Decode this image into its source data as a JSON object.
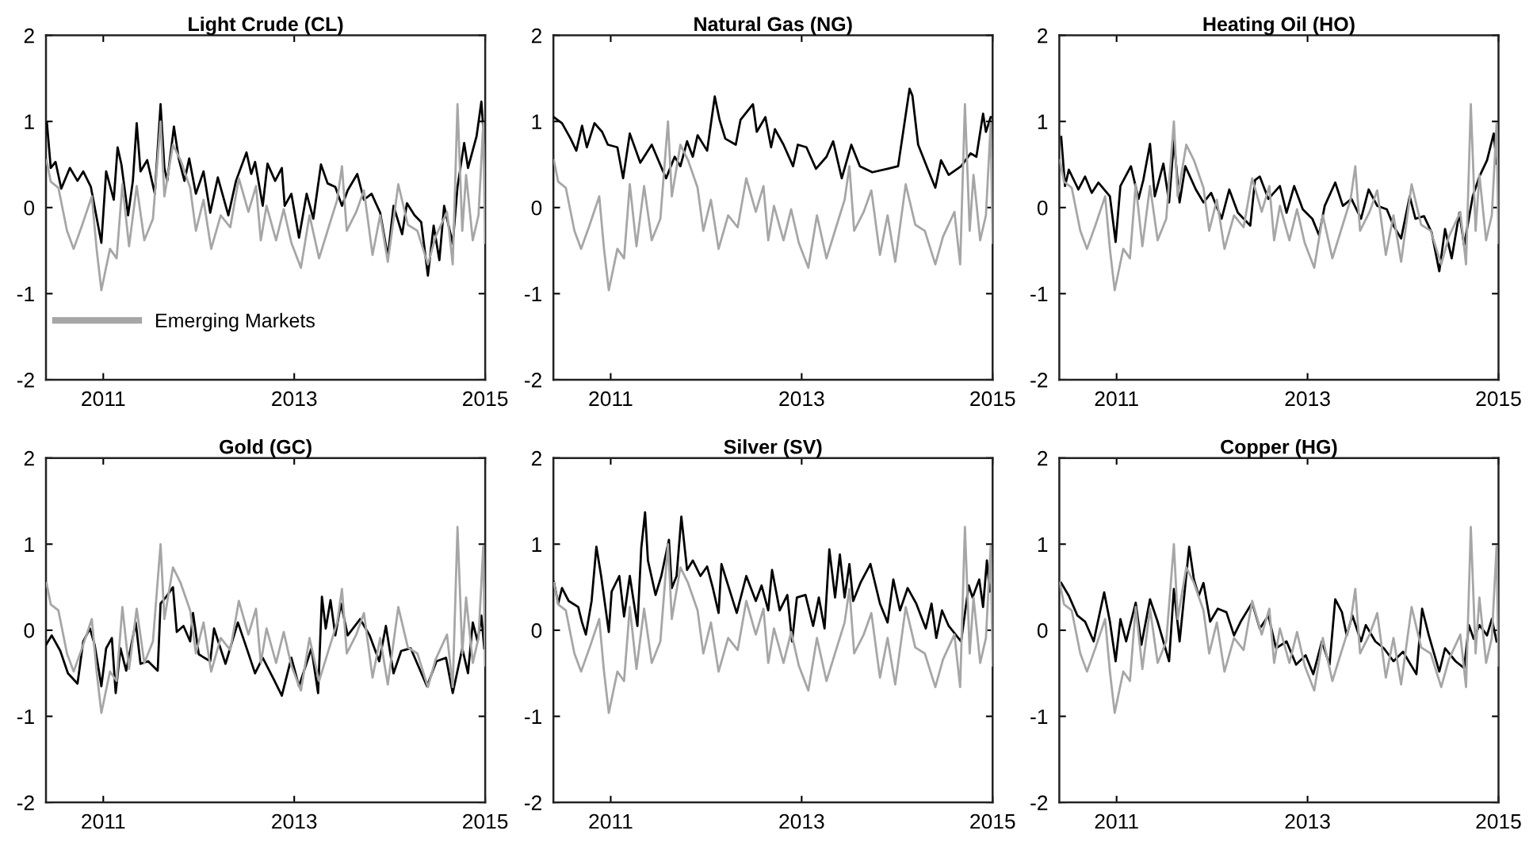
{
  "chart_data": [
    {
      "type": "line",
      "title": "Light Crude (CL)",
      "xlim": [
        2010.4,
        2015
      ],
      "xticks": [
        2011,
        2013,
        2015
      ],
      "ylim": [
        -2,
        2
      ],
      "yticks": [
        -2,
        -1,
        0,
        1,
        2
      ],
      "grid": false,
      "legend": "bottom left",
      "series": [
        {
          "color": "#000000",
          "x": [
            2010.41,
            2010.45,
            2010.5,
            2010.56,
            2010.65,
            2010.73,
            2010.79,
            2010.87,
            2010.98,
            2011.03,
            2011.11,
            2011.15,
            2011.19,
            2011.26,
            2011.31,
            2011.35,
            2011.39,
            2011.46,
            2011.54,
            2011.6,
            2011.64,
            2011.67,
            2011.74,
            2011.79,
            2011.85,
            2011.9,
            2011.97,
            2012.05,
            2012.12,
            2012.2,
            2012.31,
            2012.39,
            2012.5,
            2012.55,
            2012.59,
            2012.67,
            2012.72,
            2012.8,
            2012.87,
            2012.9,
            2012.97,
            2013.05,
            2013.13,
            2013.2,
            2013.28,
            2013.35,
            2013.43,
            2013.5,
            2013.56,
            2013.66,
            2013.73,
            2013.81,
            2013.9,
            2013.98,
            2014.04,
            2014.13,
            2014.18,
            2014.26,
            2014.33,
            2014.4,
            2014.46,
            2014.52,
            2014.57,
            2014.66,
            2014.71,
            2014.78,
            2014.82,
            2014.91,
            2014.96,
            2014.99
          ],
          "values": [
            0.98,
            0.46,
            0.53,
            0.22,
            0.46,
            0.31,
            0.42,
            0.24,
            -0.41,
            0.42,
            0.09,
            0.7,
            0.5,
            -0.09,
            0.31,
            0.98,
            0.42,
            0.55,
            0.16,
            1.2,
            0.46,
            0.31,
            0.94,
            0.57,
            0.31,
            0.57,
            0.16,
            0.42,
            -0.06,
            0.35,
            -0.09,
            0.31,
            0.64,
            0.39,
            0.53,
            0.02,
            0.51,
            0.31,
            0.46,
            0.02,
            0.16,
            -0.35,
            0.16,
            -0.13,
            0.5,
            0.28,
            0.24,
            0.02,
            0.2,
            0.39,
            0.09,
            0.16,
            -0.06,
            -0.57,
            0.02,
            -0.31,
            0.05,
            -0.09,
            -0.17,
            -0.79,
            -0.21,
            -0.61,
            0.02,
            -0.42,
            0.24,
            0.75,
            0.46,
            0.83,
            1.23,
            0.75
          ]
        },
        {
          "name": "Emerging Markets",
          "color": "#a6a6a6",
          "x": [
            2010.405,
            2010.45,
            2010.53,
            2010.62,
            2010.69,
            2010.78,
            2010.88,
            2010.93,
            2010.98,
            2011.07,
            2011.14,
            2011.2,
            2011.27,
            2011.35,
            2011.43,
            2011.52,
            2011.6,
            2011.64,
            2011.73,
            2011.81,
            2011.91,
            2011.97,
            2012.05,
            2012.13,
            2012.23,
            2012.33,
            2012.42,
            2012.52,
            2012.6,
            2012.65,
            2012.71,
            2012.81,
            2012.89,
            2012.97,
            2013.07,
            2013.16,
            2013.26,
            2013.36,
            2013.45,
            2013.5,
            2013.55,
            2013.65,
            2013.73,
            2013.82,
            2013.9,
            2013.98,
            2014.09,
            2014.19,
            2014.29,
            2014.4,
            2014.48,
            2014.6,
            2014.66,
            2014.71,
            2014.76,
            2014.8,
            2014.87,
            2014.93,
            2014.98,
            2015.0
          ],
          "values": [
            0.55,
            0.3,
            0.23,
            -0.27,
            -0.48,
            -0.2,
            0.13,
            -0.48,
            -0.96,
            -0.48,
            -0.59,
            0.27,
            -0.45,
            0.25,
            -0.38,
            -0.13,
            1.0,
            0.13,
            0.73,
            0.55,
            0.23,
            -0.27,
            0.09,
            -0.48,
            -0.09,
            -0.23,
            0.34,
            -0.05,
            0.25,
            -0.38,
            0.02,
            -0.38,
            -0.02,
            -0.41,
            -0.7,
            -0.09,
            -0.59,
            -0.23,
            0.09,
            0.48,
            -0.27,
            -0.05,
            0.2,
            -0.55,
            -0.09,
            -0.63,
            0.27,
            -0.2,
            -0.27,
            -0.66,
            -0.34,
            -0.05,
            -0.66,
            1.2,
            -0.27,
            0.38,
            -0.38,
            -0.09,
            0.98,
            -0.41
          ]
        }
      ]
    },
    {
      "type": "line",
      "title": "Natural Gas (NG)",
      "xlim": [
        2010.4,
        2015
      ],
      "xticks": [
        2011,
        2013,
        2015
      ],
      "ylim": [
        -2,
        2
      ],
      "yticks": [
        -2,
        -1,
        0,
        1,
        2
      ],
      "grid": false,
      "series": [
        {
          "color": "#000000",
          "x": [
            2010.405,
            2010.49,
            2010.58,
            2010.64,
            2010.7,
            2010.75,
            2010.83,
            2010.91,
            2010.97,
            2011.07,
            2011.13,
            2011.2,
            2011.31,
            2011.43,
            2011.51,
            2011.58,
            2011.67,
            2011.73,
            2011.8,
            2011.86,
            2011.91,
            2012.01,
            2012.09,
            2012.14,
            2012.2,
            2012.31,
            2012.36,
            2012.49,
            2012.53,
            2012.62,
            2012.68,
            2012.72,
            2012.81,
            2012.91,
            2012.96,
            2013.05,
            2013.15,
            2013.26,
            2013.33,
            2013.42,
            2013.52,
            2013.61,
            2013.74,
            2013.9,
            2014.01,
            2014.13,
            2014.16,
            2014.22,
            2014.32,
            2014.4,
            2014.46,
            2014.54,
            2014.67,
            2014.77,
            2014.83,
            2014.9,
            2014.93,
            2014.98
          ],
          "values": [
            1.05,
            0.98,
            0.8,
            0.66,
            0.95,
            0.7,
            0.98,
            0.88,
            0.73,
            0.7,
            0.34,
            0.86,
            0.52,
            0.73,
            0.52,
            0.34,
            0.59,
            0.48,
            0.77,
            0.59,
            0.84,
            0.66,
            1.29,
            1.02,
            0.8,
            0.73,
            1.02,
            1.2,
            0.88,
            1.05,
            0.7,
            0.91,
            0.73,
            0.48,
            0.73,
            0.7,
            0.45,
            0.59,
            0.77,
            0.34,
            0.73,
            0.48,
            0.41,
            0.45,
            0.48,
            1.38,
            1.3,
            0.73,
            0.45,
            0.23,
            0.55,
            0.38,
            0.48,
            0.63,
            0.59,
            1.09,
            0.88,
            1.05
          ]
        },
        {
          "color": "#a6a6a6",
          "x": [
            2010.405,
            2010.45,
            2010.53,
            2010.62,
            2010.69,
            2010.78,
            2010.88,
            2010.93,
            2010.98,
            2011.07,
            2011.14,
            2011.2,
            2011.27,
            2011.35,
            2011.43,
            2011.52,
            2011.6,
            2011.64,
            2011.73,
            2011.81,
            2011.91,
            2011.97,
            2012.05,
            2012.13,
            2012.23,
            2012.33,
            2012.42,
            2012.52,
            2012.6,
            2012.65,
            2012.71,
            2012.81,
            2012.89,
            2012.97,
            2013.07,
            2013.16,
            2013.26,
            2013.36,
            2013.45,
            2013.5,
            2013.55,
            2013.65,
            2013.73,
            2013.82,
            2013.9,
            2013.98,
            2014.09,
            2014.19,
            2014.29,
            2014.4,
            2014.48,
            2014.6,
            2014.66,
            2014.71,
            2014.76,
            2014.8,
            2014.87,
            2014.93,
            2014.98,
            2015.0
          ],
          "values": [
            0.55,
            0.3,
            0.23,
            -0.27,
            -0.48,
            -0.2,
            0.13,
            -0.48,
            -0.96,
            -0.48,
            -0.59,
            0.27,
            -0.45,
            0.25,
            -0.38,
            -0.13,
            1.0,
            0.13,
            0.73,
            0.55,
            0.23,
            -0.27,
            0.09,
            -0.48,
            -0.09,
            -0.23,
            0.34,
            -0.05,
            0.25,
            -0.38,
            0.02,
            -0.38,
            -0.02,
            -0.41,
            -0.7,
            -0.09,
            -0.59,
            -0.23,
            0.09,
            0.48,
            -0.27,
            -0.05,
            0.2,
            -0.55,
            -0.09,
            -0.63,
            0.27,
            -0.2,
            -0.27,
            -0.66,
            -0.34,
            -0.05,
            -0.66,
            1.2,
            -0.27,
            0.38,
            -0.38,
            -0.09,
            0.98,
            -0.41
          ]
        }
      ]
    },
    {
      "type": "line",
      "title": "Heating Oil (HO)",
      "xlim": [
        2010.4,
        2015
      ],
      "xticks": [
        2011,
        2013,
        2015
      ],
      "ylim": [
        -2,
        2
      ],
      "yticks": [
        -2,
        -1,
        0,
        1,
        2
      ],
      "grid": false,
      "series": [
        {
          "color": "#000000",
          "x": [
            2010.42,
            2010.46,
            2010.5,
            2010.6,
            2010.67,
            2010.74,
            2010.81,
            2010.93,
            2010.99,
            2011.04,
            2011.15,
            2011.23,
            2011.28,
            2011.35,
            2011.4,
            2011.49,
            2011.55,
            2011.6,
            2011.66,
            2011.72,
            2011.83,
            2011.91,
            2011.99,
            2012.1,
            2012.18,
            2012.27,
            2012.4,
            2012.45,
            2012.5,
            2012.59,
            2012.71,
            2012.78,
            2012.86,
            2012.95,
            2013.05,
            2013.12,
            2013.18,
            2013.29,
            2013.37,
            2013.46,
            2013.56,
            2013.64,
            2013.73,
            2013.83,
            2013.9,
            2013.98,
            2014.07,
            2014.13,
            2014.22,
            2014.3,
            2014.38,
            2014.44,
            2014.51,
            2014.59,
            2014.64,
            2014.73,
            2014.8,
            2014.88,
            2014.95,
            2014.98
          ],
          "values": [
            0.82,
            0.25,
            0.44,
            0.21,
            0.36,
            0.17,
            0.29,
            0.13,
            -0.4,
            0.25,
            0.48,
            0.1,
            0.32,
            0.74,
            0.13,
            0.51,
            0.06,
            0.78,
            0.06,
            0.48,
            0.21,
            0.06,
            0.17,
            -0.13,
            0.21,
            -0.06,
            -0.21,
            0.32,
            0.36,
            0.1,
            0.25,
            -0.06,
            0.25,
            -0.02,
            -0.13,
            -0.32,
            0.02,
            0.29,
            0.02,
            0.1,
            -0.13,
            0.21,
            0.02,
            -0.02,
            -0.21,
            -0.36,
            0.13,
            -0.13,
            -0.1,
            -0.29,
            -0.74,
            -0.25,
            -0.59,
            -0.06,
            -0.44,
            0.13,
            0.36,
            0.55,
            0.86,
            0.51
          ]
        },
        {
          "color": "#a6a6a6",
          "x": [
            2010.405,
            2010.45,
            2010.53,
            2010.62,
            2010.69,
            2010.78,
            2010.88,
            2010.93,
            2010.98,
            2011.07,
            2011.14,
            2011.2,
            2011.27,
            2011.35,
            2011.43,
            2011.52,
            2011.6,
            2011.64,
            2011.73,
            2011.81,
            2011.91,
            2011.97,
            2012.05,
            2012.13,
            2012.23,
            2012.33,
            2012.42,
            2012.52,
            2012.6,
            2012.65,
            2012.71,
            2012.81,
            2012.89,
            2012.97,
            2013.07,
            2013.16,
            2013.26,
            2013.36,
            2013.45,
            2013.5,
            2013.55,
            2013.65,
            2013.73,
            2013.82,
            2013.9,
            2013.98,
            2014.09,
            2014.19,
            2014.29,
            2014.4,
            2014.48,
            2014.6,
            2014.66,
            2014.71,
            2014.76,
            2014.8,
            2014.87,
            2014.93,
            2014.98,
            2015.0
          ],
          "values": [
            0.55,
            0.3,
            0.23,
            -0.27,
            -0.48,
            -0.2,
            0.13,
            -0.48,
            -0.96,
            -0.48,
            -0.59,
            0.27,
            -0.45,
            0.25,
            -0.38,
            -0.13,
            1.0,
            0.13,
            0.73,
            0.55,
            0.23,
            -0.27,
            0.09,
            -0.48,
            -0.09,
            -0.23,
            0.34,
            -0.05,
            0.25,
            -0.38,
            0.02,
            -0.38,
            -0.02,
            -0.41,
            -0.7,
            -0.09,
            -0.59,
            -0.23,
            0.09,
            0.48,
            -0.27,
            -0.05,
            0.2,
            -0.55,
            -0.09,
            -0.63,
            0.27,
            -0.2,
            -0.27,
            -0.66,
            -0.34,
            -0.05,
            -0.66,
            1.2,
            -0.27,
            0.38,
            -0.38,
            -0.09,
            0.98,
            -0.41
          ]
        }
      ]
    },
    {
      "type": "line",
      "title": "Gold (GC)",
      "xlim": [
        2010.4,
        2015
      ],
      "xticks": [
        2011,
        2013,
        2015
      ],
      "ylim": [
        -2,
        2
      ],
      "yticks": [
        -2,
        -1,
        0,
        1,
        2
      ],
      "grid": false,
      "series": [
        {
          "color": "#000000",
          "x": [
            2010.4,
            2010.46,
            2010.55,
            2010.63,
            2010.73,
            2010.79,
            2010.86,
            2010.91,
            2010.98,
            2011.03,
            2011.09,
            2011.13,
            2011.18,
            2011.24,
            2011.34,
            2011.39,
            2011.47,
            2011.57,
            2011.6,
            2011.66,
            2011.73,
            2011.77,
            2011.84,
            2011.91,
            2011.94,
            2012.0,
            2012.12,
            2012.16,
            2012.28,
            2012.41,
            2012.49,
            2012.59,
            2012.67,
            2012.79,
            2012.87,
            2012.97,
            2013.05,
            2013.18,
            2013.25,
            2013.29,
            2013.33,
            2013.38,
            2013.43,
            2013.49,
            2013.56,
            2013.69,
            2013.79,
            2013.89,
            2013.96,
            2014.04,
            2014.12,
            2014.22,
            2014.39,
            2014.49,
            2014.59,
            2014.66,
            2014.76,
            2014.82,
            2014.87,
            2014.92,
            2014.96,
            2014.99
          ],
          "values": [
            -0.17,
            -0.06,
            -0.24,
            -0.5,
            -0.62,
            -0.13,
            0.02,
            -0.17,
            -0.65,
            -0.21,
            -0.09,
            -0.73,
            -0.21,
            -0.47,
            0.09,
            -0.39,
            -0.36,
            -0.47,
            0.31,
            0.39,
            0.5,
            -0.02,
            0.05,
            -0.13,
            0.2,
            -0.28,
            -0.36,
            0.02,
            -0.39,
            0.09,
            -0.17,
            -0.5,
            -0.32,
            -0.58,
            -0.76,
            -0.32,
            -0.65,
            -0.21,
            -0.73,
            0.39,
            0.02,
            0.35,
            -0.06,
            0.31,
            -0.06,
            0.13,
            -0.06,
            -0.36,
            0.05,
            -0.5,
            -0.24,
            -0.21,
            -0.65,
            -0.36,
            -0.32,
            -0.73,
            -0.21,
            -0.5,
            0.09,
            -0.13,
            0.17,
            -0.21
          ]
        },
        {
          "color": "#a6a6a6",
          "x": [
            2010.405,
            2010.45,
            2010.53,
            2010.62,
            2010.69,
            2010.78,
            2010.88,
            2010.93,
            2010.98,
            2011.07,
            2011.14,
            2011.2,
            2011.27,
            2011.35,
            2011.43,
            2011.52,
            2011.6,
            2011.64,
            2011.73,
            2011.81,
            2011.91,
            2011.97,
            2012.05,
            2012.13,
            2012.23,
            2012.33,
            2012.42,
            2012.52,
            2012.6,
            2012.65,
            2012.71,
            2012.81,
            2012.89,
            2012.97,
            2013.07,
            2013.16,
            2013.26,
            2013.36,
            2013.45,
            2013.5,
            2013.55,
            2013.65,
            2013.73,
            2013.82,
            2013.9,
            2013.98,
            2014.09,
            2014.19,
            2014.29,
            2014.4,
            2014.48,
            2014.6,
            2014.66,
            2014.71,
            2014.76,
            2014.8,
            2014.87,
            2014.93,
            2014.98,
            2015.0
          ],
          "values": [
            0.55,
            0.3,
            0.23,
            -0.27,
            -0.48,
            -0.2,
            0.13,
            -0.48,
            -0.96,
            -0.48,
            -0.59,
            0.27,
            -0.45,
            0.25,
            -0.38,
            -0.13,
            1.0,
            0.13,
            0.73,
            0.55,
            0.23,
            -0.27,
            0.09,
            -0.48,
            -0.09,
            -0.23,
            0.34,
            -0.05,
            0.25,
            -0.38,
            0.02,
            -0.38,
            -0.02,
            -0.41,
            -0.7,
            -0.09,
            -0.59,
            -0.23,
            0.09,
            0.48,
            -0.27,
            -0.05,
            0.2,
            -0.55,
            -0.09,
            -0.63,
            0.27,
            -0.2,
            -0.27,
            -0.66,
            -0.34,
            -0.05,
            -0.66,
            1.2,
            -0.27,
            0.38,
            -0.38,
            -0.09,
            0.98,
            -0.41
          ]
        }
      ]
    },
    {
      "type": "line",
      "title": "Silver (SV)",
      "xlim": [
        2010.4,
        2015
      ],
      "xticks": [
        2011,
        2013,
        2015
      ],
      "ylim": [
        -2,
        2
      ],
      "yticks": [
        -2,
        -1,
        0,
        1,
        2
      ],
      "grid": false,
      "series": [
        {
          "color": "#000000",
          "x": [
            2010.405,
            2010.45,
            2010.49,
            2010.56,
            2010.66,
            2010.7,
            2010.74,
            2010.8,
            2010.85,
            2010.9,
            2010.98,
            2011.01,
            2011.09,
            2011.14,
            2011.2,
            2011.28,
            2011.32,
            2011.36,
            2011.39,
            2011.47,
            2011.53,
            2011.61,
            2011.64,
            2011.69,
            2011.74,
            2011.8,
            2011.86,
            2011.94,
            2012.01,
            2012.07,
            2012.13,
            2012.16,
            2012.23,
            2012.32,
            2012.42,
            2012.52,
            2012.58,
            2012.65,
            2012.69,
            2012.77,
            2012.85,
            2012.9,
            2012.95,
            2013.04,
            2013.12,
            2013.18,
            2013.24,
            2013.29,
            2013.35,
            2013.4,
            2013.45,
            2013.5,
            2013.54,
            2013.62,
            2013.72,
            2013.82,
            2013.9,
            2013.96,
            2014.03,
            2014.11,
            2014.2,
            2014.3,
            2014.36,
            2014.41,
            2014.47,
            2014.54,
            2014.67,
            2014.75,
            2014.79,
            2014.86,
            2014.9,
            2014.94,
            2014.97,
            2015.0
          ],
          "values": [
            0.56,
            0.31,
            0.49,
            0.34,
            0.27,
            0.09,
            -0.05,
            0.34,
            0.97,
            0.63,
            -0.02,
            0.45,
            0.63,
            0.16,
            0.63,
            0.05,
            0.95,
            1.37,
            0.81,
            0.41,
            0.63,
            1.05,
            0.49,
            0.63,
            1.32,
            0.7,
            0.81,
            0.63,
            0.74,
            0.49,
            0.2,
            0.77,
            0.52,
            0.2,
            0.63,
            0.34,
            0.52,
            0.23,
            0.7,
            0.23,
            0.41,
            -0.13,
            0.38,
            0.41,
            0.05,
            0.38,
            0.02,
            0.94,
            0.38,
            0.88,
            0.38,
            0.77,
            0.34,
            0.56,
            0.77,
            0.31,
            0.09,
            0.59,
            0.23,
            0.49,
            0.31,
            0.02,
            0.31,
            -0.09,
            0.23,
            0.05,
            -0.13,
            0.52,
            0.38,
            0.59,
            0.27,
            0.81,
            0.45,
            0.59
          ]
        },
        {
          "color": "#a6a6a6",
          "x": [
            2010.405,
            2010.45,
            2010.53,
            2010.62,
            2010.69,
            2010.78,
            2010.88,
            2010.93,
            2010.98,
            2011.07,
            2011.14,
            2011.2,
            2011.27,
            2011.35,
            2011.43,
            2011.52,
            2011.6,
            2011.64,
            2011.73,
            2011.81,
            2011.91,
            2011.97,
            2012.05,
            2012.13,
            2012.23,
            2012.33,
            2012.42,
            2012.52,
            2012.6,
            2012.65,
            2012.71,
            2012.81,
            2012.89,
            2012.97,
            2013.07,
            2013.16,
            2013.26,
            2013.36,
            2013.45,
            2013.5,
            2013.55,
            2013.65,
            2013.73,
            2013.82,
            2013.9,
            2013.98,
            2014.09,
            2014.19,
            2014.29,
            2014.4,
            2014.48,
            2014.6,
            2014.66,
            2014.71,
            2014.76,
            2014.8,
            2014.87,
            2014.93,
            2014.98,
            2015.0
          ],
          "values": [
            0.55,
            0.3,
            0.23,
            -0.27,
            -0.48,
            -0.2,
            0.13,
            -0.48,
            -0.96,
            -0.48,
            -0.59,
            0.27,
            -0.45,
            0.25,
            -0.38,
            -0.13,
            1.0,
            0.13,
            0.73,
            0.55,
            0.23,
            -0.27,
            0.09,
            -0.48,
            -0.09,
            -0.23,
            0.34,
            -0.05,
            0.25,
            -0.38,
            0.02,
            -0.38,
            -0.02,
            -0.41,
            -0.7,
            -0.09,
            -0.59,
            -0.23,
            0.09,
            0.48,
            -0.27,
            -0.05,
            0.2,
            -0.55,
            -0.09,
            -0.63,
            0.27,
            -0.2,
            -0.27,
            -0.66,
            -0.34,
            -0.05,
            -0.66,
            1.2,
            -0.27,
            0.38,
            -0.38,
            -0.09,
            0.98,
            -0.41
          ]
        }
      ]
    },
    {
      "type": "line",
      "title": "Copper (HG)",
      "xlim": [
        2010.4,
        2015
      ],
      "xticks": [
        2011,
        2013,
        2015
      ],
      "ylim": [
        -2,
        2
      ],
      "yticks": [
        -2,
        -1,
        0,
        1,
        2
      ],
      "grid": false,
      "series": [
        {
          "color": "#000000",
          "x": [
            2010.42,
            2010.5,
            2010.59,
            2010.67,
            2010.76,
            2010.81,
            2010.87,
            2010.93,
            2010.99,
            2011.04,
            2011.1,
            2011.2,
            2011.26,
            2011.35,
            2011.43,
            2011.55,
            2011.6,
            2011.66,
            2011.76,
            2011.81,
            2011.86,
            2011.91,
            2011.98,
            2012.06,
            2012.15,
            2012.23,
            2012.3,
            2012.42,
            2012.5,
            2012.59,
            2012.67,
            2012.78,
            2012.88,
            2012.98,
            2013.06,
            2013.15,
            2013.23,
            2013.29,
            2013.36,
            2013.41,
            2013.47,
            2013.56,
            2013.61,
            2013.71,
            2013.8,
            2013.9,
            2014.0,
            2014.14,
            2014.2,
            2014.27,
            2014.38,
            2014.44,
            2014.55,
            2014.64,
            2014.69,
            2014.74,
            2014.8,
            2014.88,
            2014.93,
            2014.98
          ],
          "values": [
            0.55,
            0.4,
            0.17,
            0.1,
            -0.13,
            0.13,
            0.44,
            0.1,
            -0.36,
            0.13,
            -0.13,
            0.32,
            -0.17,
            0.36,
            0.1,
            -0.36,
            0.48,
            -0.13,
            0.97,
            0.59,
            0.4,
            0.55,
            0.1,
            0.25,
            0.21,
            -0.06,
            0.1,
            0.32,
            0.02,
            0.17,
            -0.21,
            -0.13,
            -0.4,
            -0.29,
            -0.51,
            -0.13,
            -0.4,
            0.36,
            0.21,
            -0.06,
            0.17,
            -0.13,
            0.06,
            -0.13,
            -0.21,
            -0.36,
            -0.25,
            -0.51,
            0.25,
            -0.06,
            -0.48,
            -0.21,
            -0.36,
            -0.44,
            0.06,
            -0.1,
            0.06,
            -0.06,
            0.13,
            -0.13
          ]
        },
        {
          "color": "#a6a6a6",
          "x": [
            2010.405,
            2010.45,
            2010.53,
            2010.62,
            2010.69,
            2010.78,
            2010.88,
            2010.93,
            2010.98,
            2011.07,
            2011.14,
            2011.2,
            2011.27,
            2011.35,
            2011.43,
            2011.52,
            2011.6,
            2011.64,
            2011.73,
            2011.81,
            2011.91,
            2011.97,
            2012.05,
            2012.13,
            2012.23,
            2012.33,
            2012.42,
            2012.52,
            2012.6,
            2012.65,
            2012.71,
            2012.81,
            2012.89,
            2012.97,
            2013.07,
            2013.16,
            2013.26,
            2013.36,
            2013.45,
            2013.5,
            2013.55,
            2013.65,
            2013.73,
            2013.82,
            2013.9,
            2013.98,
            2014.09,
            2014.19,
            2014.29,
            2014.4,
            2014.48,
            2014.6,
            2014.66,
            2014.71,
            2014.76,
            2014.8,
            2014.87,
            2014.93,
            2014.98,
            2015.0
          ],
          "values": [
            0.55,
            0.3,
            0.23,
            -0.27,
            -0.48,
            -0.2,
            0.13,
            -0.48,
            -0.96,
            -0.48,
            -0.59,
            0.27,
            -0.45,
            0.25,
            -0.38,
            -0.13,
            1.0,
            0.13,
            0.73,
            0.55,
            0.23,
            -0.27,
            0.09,
            -0.48,
            -0.09,
            -0.23,
            0.34,
            -0.05,
            0.25,
            -0.38,
            0.02,
            -0.38,
            -0.02,
            -0.41,
            -0.7,
            -0.09,
            -0.59,
            -0.23,
            0.09,
            0.48,
            -0.27,
            -0.05,
            0.2,
            -0.55,
            -0.09,
            -0.63,
            0.27,
            -0.2,
            -0.27,
            -0.66,
            -0.34,
            -0.05,
            -0.66,
            1.2,
            -0.27,
            0.38,
            -0.38,
            -0.09,
            0.98,
            -0.41
          ]
        }
      ]
    }
  ]
}
